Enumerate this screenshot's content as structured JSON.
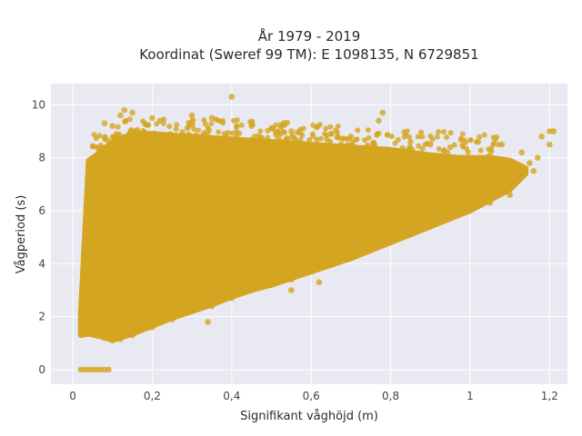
{
  "chart_data": {
    "type": "scatter",
    "title_line1": "År 1979 - 2019",
    "title_line2": "Koordinat (Sweref 99 TM): E 1098135, N 6729851",
    "xlabel": "Signifikant våghöjd (m)",
    "ylabel": "Vågperiod (s)",
    "xlim": [
      -0.055,
      1.245
    ],
    "ylim": [
      -0.55,
      10.8
    ],
    "x_ticks": [
      0,
      0.2,
      0.4,
      0.6,
      0.8,
      1.0,
      1.2
    ],
    "x_tick_labels": [
      "0",
      "0,2",
      "0,4",
      "0,6",
      "0,8",
      "1",
      "1,2"
    ],
    "y_ticks": [
      0,
      2,
      4,
      6,
      8,
      10
    ],
    "y_tick_labels": [
      "0",
      "2",
      "4",
      "6",
      "8",
      "10"
    ],
    "grid": true,
    "marker_color": "#D4A520",
    "plot_background": "#E9E9F2",
    "points": [
      [
        0.02,
        0
      ],
      [
        0.03,
        0
      ],
      [
        0.04,
        0
      ],
      [
        0.05,
        0
      ],
      [
        0.06,
        0
      ],
      [
        0.07,
        0
      ],
      [
        0.08,
        0
      ],
      [
        0.09,
        0
      ],
      [
        0.4,
        10.3
      ],
      [
        0.13,
        9.8
      ],
      [
        0.15,
        9.7
      ],
      [
        0.12,
        9.6
      ],
      [
        0.2,
        9.5
      ],
      [
        0.22,
        9.4
      ],
      [
        0.3,
        9.6
      ],
      [
        0.35,
        9.5
      ],
      [
        0.45,
        9.2
      ],
      [
        0.5,
        9.1
      ],
      [
        0.78,
        9.7
      ],
      [
        0.77,
        9.4
      ],
      [
        0.55,
        9.0
      ],
      [
        0.65,
        8.9
      ],
      [
        0.7,
        8.8
      ],
      [
        0.85,
        8.6
      ],
      [
        0.9,
        8.5
      ],
      [
        0.95,
        8.4
      ],
      [
        1.02,
        8.6
      ],
      [
        1.08,
        8.5
      ],
      [
        1.13,
        8.2
      ],
      [
        1.15,
        7.8
      ],
      [
        1.2,
        9.0
      ],
      [
        1.21,
        9.0
      ],
      [
        1.2,
        8.5
      ],
      [
        1.18,
        8.8
      ],
      [
        1.17,
        8.0
      ],
      [
        1.16,
        7.5
      ],
      [
        1.12,
        7.6
      ],
      [
        1.1,
        7.2
      ],
      [
        1.05,
        7.0
      ],
      [
        1.0,
        6.8
      ],
      [
        0.08,
        9.3
      ],
      [
        0.1,
        9.2
      ],
      [
        0.11,
        8.9
      ],
      [
        0.05,
        7.9
      ],
      [
        0.06,
        7.5
      ],
      [
        0.04,
        5.2
      ],
      [
        0.03,
        4.0
      ],
      [
        0.02,
        1.6
      ],
      [
        0.02,
        1.4
      ],
      [
        0.03,
        2.2
      ],
      [
        0.05,
        1.5
      ],
      [
        0.08,
        1.2
      ],
      [
        0.1,
        1.1
      ],
      [
        0.12,
        1.15
      ],
      [
        0.15,
        1.3
      ],
      [
        0.2,
        1.6
      ],
      [
        0.25,
        1.9
      ],
      [
        0.3,
        2.2
      ],
      [
        0.35,
        2.4
      ],
      [
        0.4,
        2.7
      ],
      [
        0.45,
        3.0
      ],
      [
        0.5,
        3.2
      ],
      [
        0.55,
        3.4
      ],
      [
        0.6,
        3.7
      ],
      [
        0.65,
        4.0
      ],
      [
        0.7,
        4.2
      ],
      [
        0.75,
        4.5
      ],
      [
        0.8,
        4.8
      ],
      [
        0.85,
        5.1
      ],
      [
        0.9,
        5.4
      ],
      [
        0.95,
        5.7
      ],
      [
        1.0,
        6.0
      ],
      [
        1.05,
        6.3
      ],
      [
        1.1,
        6.6
      ],
      [
        0.55,
        3.0
      ],
      [
        0.62,
        3.3
      ],
      [
        0.34,
        1.8
      ]
    ]
  }
}
